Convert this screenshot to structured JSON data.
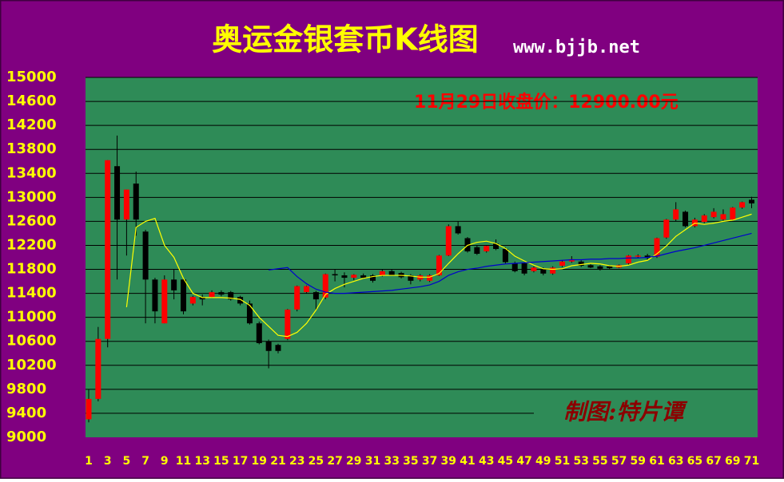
{
  "chart_data": {
    "type": "candlestick",
    "title": "奥运金银套币K线图",
    "subtitle": "www.bjjb.net",
    "annotation": "11月29日收盘价：12900.00元",
    "credit": "制图:特片谭",
    "categories": [
      "1",
      null,
      "3",
      null,
      "5",
      null,
      "7",
      null,
      "9",
      null,
      "11",
      null,
      "13",
      null,
      "15",
      null,
      "17",
      null,
      "19",
      null,
      "21",
      null,
      "23",
      null,
      "25",
      null,
      "27",
      null,
      "29",
      null,
      "31",
      null,
      "33",
      null,
      "35",
      null,
      "37",
      null,
      "39",
      null,
      "41",
      null,
      "43",
      null,
      "45",
      null,
      "47",
      null,
      "49",
      null,
      "51",
      null,
      "53",
      null,
      "55",
      null,
      "57",
      null,
      "59",
      null,
      "61",
      null,
      "63",
      null,
      "65",
      null,
      "67",
      null,
      "69",
      null,
      "71"
    ],
    "open": [
      9300,
      9640,
      10640,
      13520,
      12630,
      13230,
      12430,
      11630,
      10900,
      11630,
      11630,
      11230,
      11340,
      11340,
      11420,
      11420,
      11340,
      11230,
      10900,
      10600,
      10540,
      10640,
      11130,
      11420,
      11420,
      11330,
      11720,
      11700,
      11660,
      11700,
      11700,
      11700,
      11770,
      11740,
      11700,
      11630,
      11610,
      11700,
      12030,
      12520,
      12320,
      12170,
      12100,
      12230,
      12140,
      11900,
      11900,
      11770,
      11810,
      11730,
      11860,
      11930,
      11930,
      11870,
      11850,
      11850,
      11830,
      11900,
      12010,
      12030,
      12010,
      12330,
      12630,
      12760,
      12520,
      12590,
      12670,
      12630,
      12630,
      12830,
      12960
    ],
    "high": [
      9800,
      10840,
      13620,
      14030,
      13130,
      13430,
      12460,
      11660,
      11700,
      11800,
      11650,
      11360,
      11380,
      11450,
      11450,
      11440,
      11360,
      11280,
      10930,
      10630,
      10560,
      11140,
      11530,
      11530,
      11440,
      11730,
      11800,
      11750,
      11720,
      11730,
      11720,
      11800,
      11800,
      11760,
      11720,
      11720,
      11720,
      12040,
      12550,
      12600,
      12340,
      12200,
      12200,
      12300,
      12170,
      11930,
      11920,
      11850,
      11830,
      11850,
      11950,
      12020,
      11950,
      11890,
      11870,
      11870,
      11880,
      12040,
      12050,
      12060,
      12330,
      12640,
      12920,
      12780,
      12660,
      12720,
      12820,
      12800,
      12840,
      12930,
      13010
    ],
    "low": [
      9250,
      9600,
      10500,
      11630,
      12030,
      12360,
      10900,
      10900,
      10900,
      11300,
      11050,
      11200,
      11200,
      11320,
      11350,
      11280,
      11200,
      10880,
      10550,
      10150,
      10400,
      10620,
      11100,
      11400,
      11120,
      11300,
      11600,
      11500,
      11620,
      11640,
      11580,
      11680,
      11700,
      11650,
      11550,
      11600,
      11590,
      11690,
      12020,
      12380,
      12080,
      12040,
      12080,
      12120,
      11900,
      11750,
      11700,
      11750,
      11700,
      11710,
      11840,
      11910,
      11840,
      11820,
      11780,
      11800,
      11820,
      11880,
      11990,
      11960,
      11990,
      12310,
      12600,
      12500,
      12500,
      12570,
      12650,
      12610,
      12610,
      12810,
      12820
    ],
    "close": [
      9640,
      10640,
      13620,
      12630,
      13130,
      12630,
      11630,
      11100,
      11630,
      11450,
      11100,
      11340,
      11300,
      11420,
      11380,
      11300,
      11230,
      10900,
      10570,
      10440,
      10440,
      11130,
      11520,
      11520,
      11300,
      11720,
      11700,
      11660,
      11710,
      11660,
      11610,
      11770,
      11700,
      11670,
      11610,
      11700,
      11700,
      12030,
      12520,
      12400,
      12100,
      12060,
      12190,
      12140,
      11920,
      11770,
      11730,
      11830,
      11730,
      11830,
      11930,
      11970,
      11860,
      11830,
      11810,
      11820,
      11870,
      12030,
      12030,
      11990,
      12320,
      12630,
      12800,
      12520,
      12630,
      12700,
      12760,
      12720,
      12830,
      12920,
      12900
    ],
    "up_color": "#ff0000",
    "down_color": "#000000",
    "lines": [
      {
        "color": "#ffff00",
        "values": [
          null,
          null,
          null,
          null,
          11170,
          12500,
          12600,
          12650,
          12200,
          12000,
          11650,
          11400,
          11330,
          11330,
          11330,
          11320,
          11300,
          11200,
          11000,
          10850,
          10700,
          10680,
          10750,
          10900,
          11120,
          11380,
          11480,
          11550,
          11600,
          11650,
          11680,
          11700,
          11700,
          11700,
          11690,
          11670,
          11670,
          11730,
          11900,
          12060,
          12200,
          12250,
          12270,
          12230,
          12150,
          12020,
          11940,
          11870,
          11810,
          11800,
          11810,
          11860,
          11880,
          11900,
          11890,
          11860,
          11850,
          11870,
          11920,
          11950,
          12060,
          12190,
          12350,
          12460,
          12570,
          12550,
          12570,
          12600,
          12620,
          12670,
          12720
        ]
      },
      {
        "color": "#0000cc",
        "values": [
          null,
          null,
          null,
          null,
          null,
          null,
          null,
          null,
          null,
          null,
          null,
          null,
          null,
          null,
          null,
          null,
          null,
          null,
          null,
          11790,
          11810,
          11830,
          11680,
          11560,
          11470,
          11420,
          11400,
          11400,
          11410,
          11420,
          11430,
          11440,
          11450,
          11470,
          11490,
          11510,
          11540,
          11600,
          11700,
          11760,
          11800,
          11820,
          11850,
          11870,
          11890,
          11900,
          11910,
          11920,
          11930,
          11940,
          11950,
          11960,
          11960,
          11970,
          11970,
          11980,
          11980,
          11990,
          11990,
          12000,
          12020,
          12060,
          12100,
          12130,
          12160,
          12200,
          12240,
          12280,
          12320,
          12360,
          12400
        ]
      }
    ],
    "ylim": [
      9000,
      15000
    ],
    "yticks": [
      9000,
      9400,
      9800,
      10200,
      10600,
      11000,
      11400,
      11800,
      12200,
      12600,
      13000,
      13400,
      13800,
      14200,
      14600,
      15000
    ],
    "grid": true
  }
}
